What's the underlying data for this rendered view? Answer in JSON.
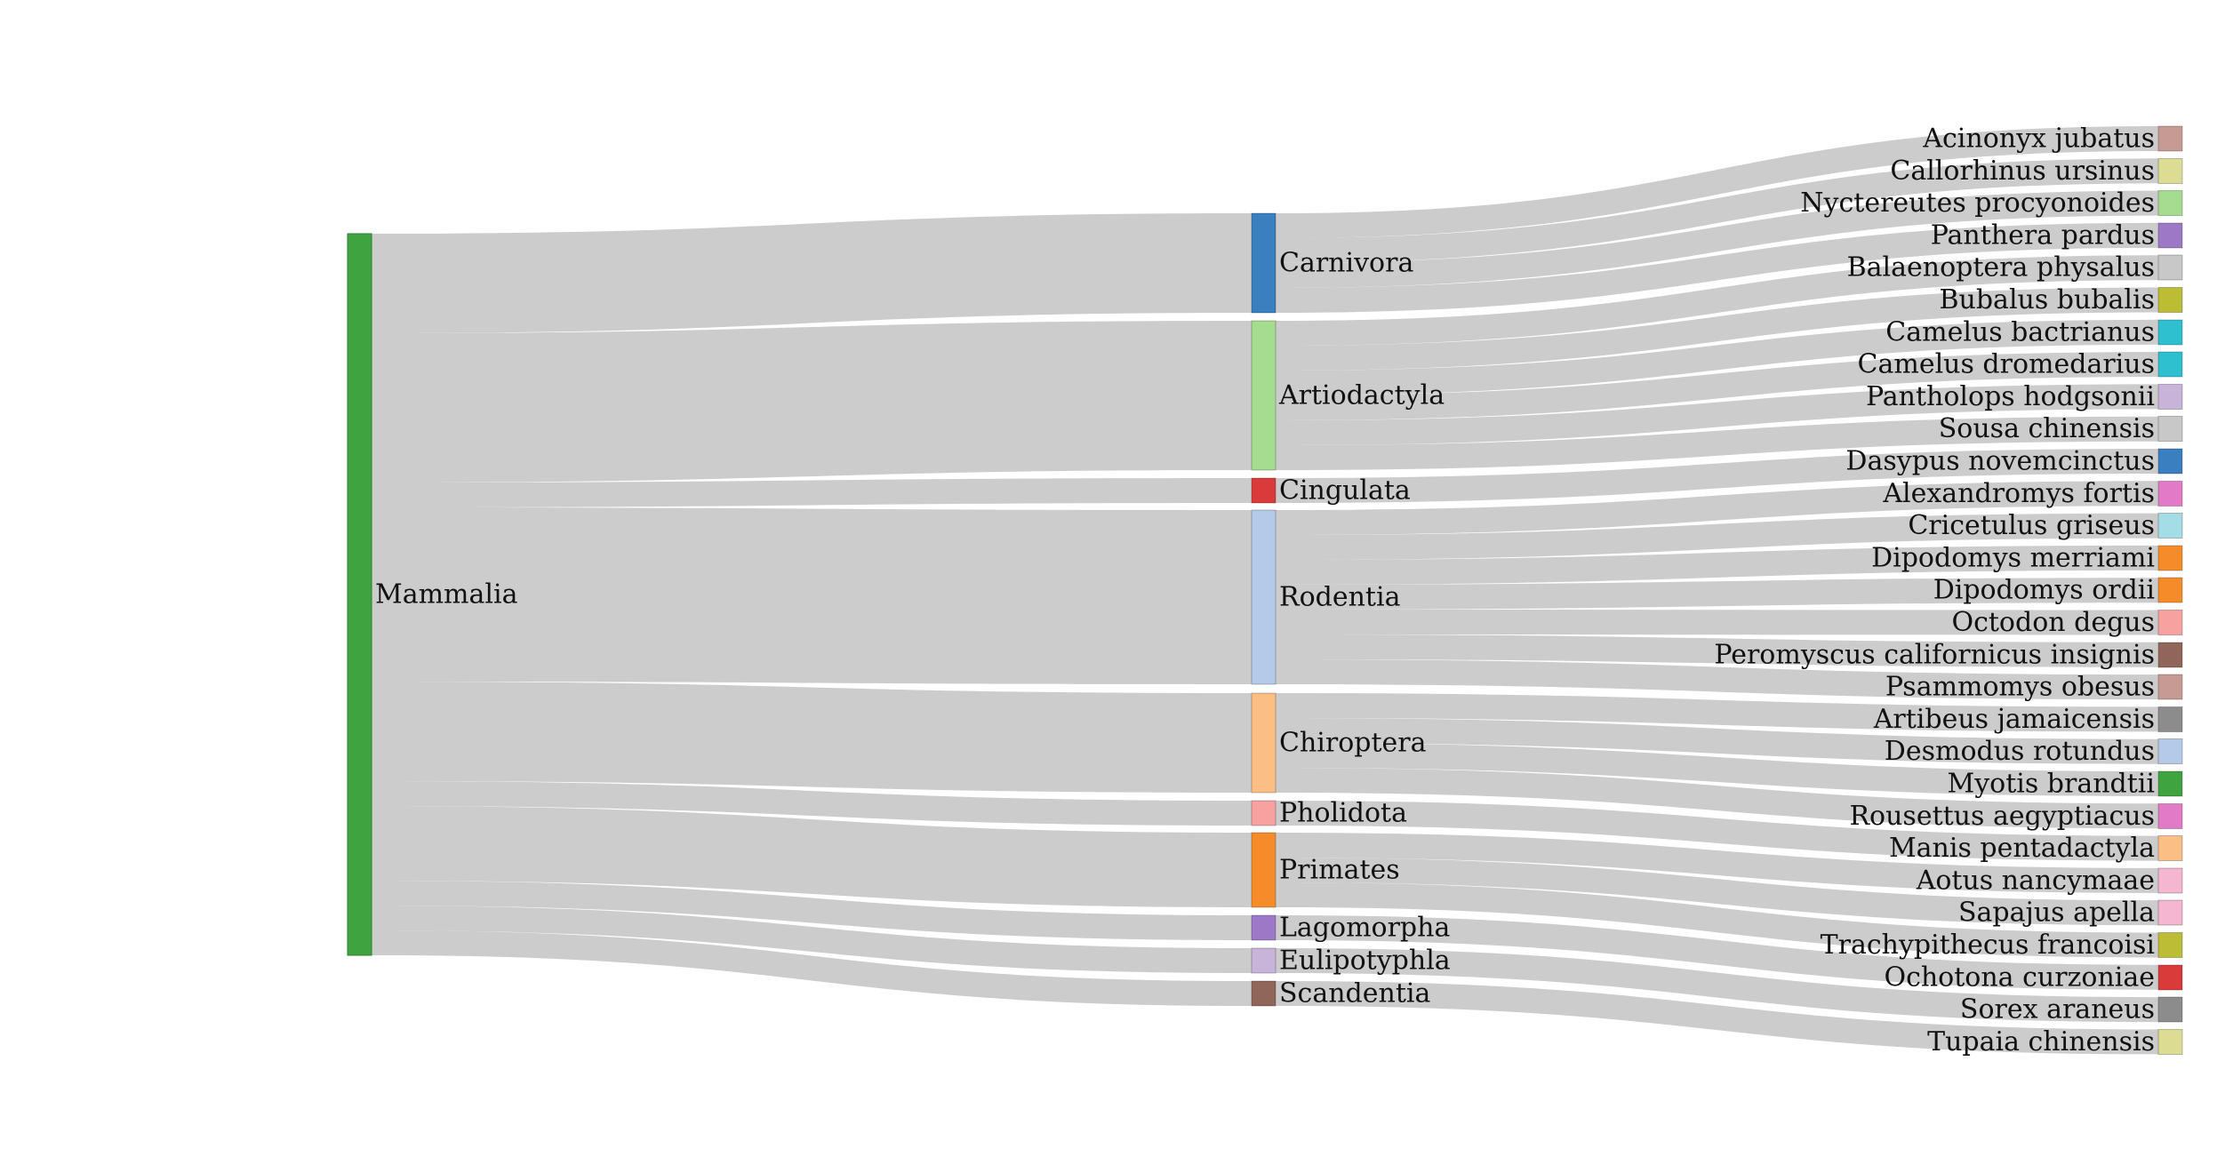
{
  "root": {
    "label": "Mammalia",
    "color": "#3fa33f"
  },
  "orders": [
    {
      "label": "Carnivora",
      "color": "#3a7fbf",
      "species": [
        0,
        1,
        2,
        3
      ]
    },
    {
      "label": "Artiodactyla",
      "color": "#a6dc8f",
      "species": [
        4,
        5,
        6,
        7,
        8,
        9
      ]
    },
    {
      "label": "Cingulata",
      "color": "#d93b3b",
      "species": [
        10
      ]
    },
    {
      "label": "Rodentia",
      "color": "#b5c9e8",
      "species": [
        11,
        12,
        13,
        14,
        15,
        16,
        17
      ]
    },
    {
      "label": "Chiroptera",
      "color": "#fbbf86",
      "species": [
        18,
        19,
        20,
        21
      ]
    },
    {
      "label": "Pholidota",
      "color": "#f7a1a1",
      "species": [
        22
      ]
    },
    {
      "label": "Primates",
      "color": "#f68b2a",
      "species": [
        23,
        24,
        25
      ]
    },
    {
      "label": "Lagomorpha",
      "color": "#9d78c6",
      "species": [
        26
      ]
    },
    {
      "label": "Eulipotyphla",
      "color": "#c8b3d9",
      "species": [
        27
      ]
    },
    {
      "label": "Scandentia",
      "color": "#91665a",
      "species": [
        28
      ]
    }
  ],
  "species": [
    {
      "label": "Acinonyx jubatus",
      "color": "#c79b93"
    },
    {
      "label": "Callorhinus ursinus",
      "color": "#dcdc93"
    },
    {
      "label": "Nyctereutes procyonoides",
      "color": "#a6dc8f"
    },
    {
      "label": "Panthera pardus",
      "color": "#9d78c6"
    },
    {
      "label": "Balaenoptera physalus",
      "color": "#c8c8c8"
    },
    {
      "label": "Bubalus bubalis",
      "color": "#bcbd35"
    },
    {
      "label": "Camelus bactrianus",
      "color": "#2fc0cf"
    },
    {
      "label": "Camelus dromedarius",
      "color": "#2fc0cf"
    },
    {
      "label": "Pantholops hodgsonii",
      "color": "#c8b3d9"
    },
    {
      "label": "Sousa chinensis",
      "color": "#c8c8c8"
    },
    {
      "label": "Dasypus novemcinctus",
      "color": "#3a7fbf"
    },
    {
      "label": "Alexandromys fortis",
      "color": "#e27ac8"
    },
    {
      "label": "Cricetulus griseus",
      "color": "#a5dde6"
    },
    {
      "label": "Dipodomys merriami",
      "color": "#f68b2a"
    },
    {
      "label": "Dipodomys ordii",
      "color": "#f68b2a"
    },
    {
      "label": "Octodon degus",
      "color": "#f7a1a1"
    },
    {
      "label": "Peromyscus californicus insignis",
      "color": "#91665a"
    },
    {
      "label": "Psammomys obesus",
      "color": "#c79b93"
    },
    {
      "label": "Artibeus jamaicensis",
      "color": "#8c8c8c"
    },
    {
      "label": "Desmodus rotundus",
      "color": "#b5c9e8"
    },
    {
      "label": "Myotis brandtii",
      "color": "#3fa33f"
    },
    {
      "label": "Rousettus aegyptiacus",
      "color": "#e27ac8"
    },
    {
      "label": "Manis pentadactyla",
      "color": "#fbbf86"
    },
    {
      "label": "Aotus nancymaae",
      "color": "#f5b6d2"
    },
    {
      "label": "Sapajus apella",
      "color": "#f5b6d2"
    },
    {
      "label": "Trachypithecus francoisi",
      "color": "#bcbd35"
    },
    {
      "label": "Ochotona curzoniae",
      "color": "#d93b3b"
    },
    {
      "label": "Sorex araneus",
      "color": "#8c8c8c"
    },
    {
      "label": "Tupaia chinensis",
      "color": "#dcdc93"
    }
  ],
  "link_color": "#cccccc"
}
